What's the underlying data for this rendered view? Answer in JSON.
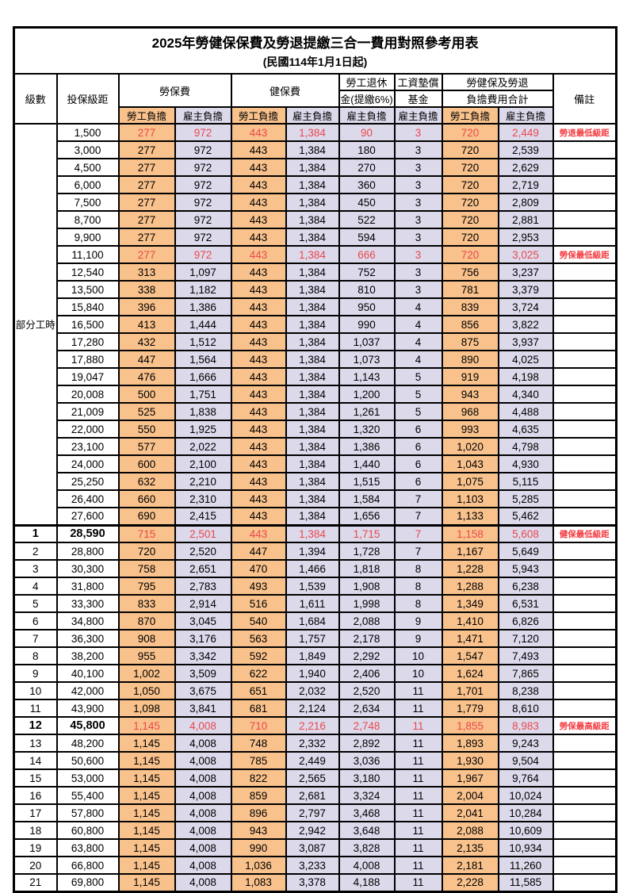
{
  "title": "2025年勞健保保費及勞退提繳三合一費用對照參考用表",
  "subtitle": "(民國114年1月1日起)",
  "columns": {
    "level": "級數",
    "bracket": "投保級距",
    "labor_group": "勞保費",
    "health_group": "健保費",
    "pension_line1": "勞工退休",
    "pension_line2": "金(提繳6%)",
    "fund_line1": "工資墊償",
    "fund_line2": "基金",
    "total_line1": "勞健保及勞退",
    "total_line2": "負擔費用合計",
    "remark": "備註",
    "employee": "勞工負擔",
    "employer": "雇主負擔"
  },
  "part_time_label": "部分工時",
  "colors": {
    "employee_bg": "#F9C28C",
    "employer_bg": "#DCD9EB",
    "highlight_number_red": "#E9484D",
    "remark_red": "#F43B40",
    "border_black": "#000000"
  },
  "row_fields": [
    "level",
    "bracket",
    "labor_emp",
    "labor_er",
    "health_emp",
    "health_er",
    "pension_er",
    "fund_er",
    "total_emp",
    "total_er",
    "remark",
    "highlight",
    "bold"
  ],
  "rows": [
    [
      "",
      "1,500",
      "277",
      "972",
      "443",
      "1,384",
      "90",
      "3",
      "720",
      "2,449",
      "勞退最低級距",
      true,
      false
    ],
    [
      "",
      "3,000",
      "277",
      "972",
      "443",
      "1,384",
      "180",
      "3",
      "720",
      "2,539",
      "",
      false,
      false
    ],
    [
      "",
      "4,500",
      "277",
      "972",
      "443",
      "1,384",
      "270",
      "3",
      "720",
      "2,629",
      "",
      false,
      false
    ],
    [
      "",
      "6,000",
      "277",
      "972",
      "443",
      "1,384",
      "360",
      "3",
      "720",
      "2,719",
      "",
      false,
      false
    ],
    [
      "",
      "7,500",
      "277",
      "972",
      "443",
      "1,384",
      "450",
      "3",
      "720",
      "2,809",
      "",
      false,
      false
    ],
    [
      "",
      "8,700",
      "277",
      "972",
      "443",
      "1,384",
      "522",
      "3",
      "720",
      "2,881",
      "",
      false,
      false
    ],
    [
      "",
      "9,900",
      "277",
      "972",
      "443",
      "1,384",
      "594",
      "3",
      "720",
      "2,953",
      "",
      false,
      false
    ],
    [
      "",
      "11,100",
      "277",
      "972",
      "443",
      "1,384",
      "666",
      "3",
      "720",
      "3,025",
      "勞保最低級距",
      true,
      false
    ],
    [
      "",
      "12,540",
      "313",
      "1,097",
      "443",
      "1,384",
      "752",
      "3",
      "756",
      "3,237",
      "",
      false,
      false
    ],
    [
      "",
      "13,500",
      "338",
      "1,182",
      "443",
      "1,384",
      "810",
      "3",
      "781",
      "3,379",
      "",
      false,
      false
    ],
    [
      "",
      "15,840",
      "396",
      "1,386",
      "443",
      "1,384",
      "950",
      "4",
      "839",
      "3,724",
      "",
      false,
      false
    ],
    [
      "",
      "16,500",
      "413",
      "1,444",
      "443",
      "1,384",
      "990",
      "4",
      "856",
      "3,822",
      "",
      false,
      false
    ],
    [
      "",
      "17,280",
      "432",
      "1,512",
      "443",
      "1,384",
      "1,037",
      "4",
      "875",
      "3,937",
      "",
      false,
      false
    ],
    [
      "",
      "17,880",
      "447",
      "1,564",
      "443",
      "1,384",
      "1,073",
      "4",
      "890",
      "4,025",
      "",
      false,
      false
    ],
    [
      "",
      "19,047",
      "476",
      "1,666",
      "443",
      "1,384",
      "1,143",
      "5",
      "919",
      "4,198",
      "",
      false,
      false
    ],
    [
      "",
      "20,008",
      "500",
      "1,751",
      "443",
      "1,384",
      "1,200",
      "5",
      "943",
      "4,340",
      "",
      false,
      false
    ],
    [
      "",
      "21,009",
      "525",
      "1,838",
      "443",
      "1,384",
      "1,261",
      "5",
      "968",
      "4,488",
      "",
      false,
      false
    ],
    [
      "",
      "22,000",
      "550",
      "1,925",
      "443",
      "1,384",
      "1,320",
      "6",
      "993",
      "4,635",
      "",
      false,
      false
    ],
    [
      "",
      "23,100",
      "577",
      "2,022",
      "443",
      "1,384",
      "1,386",
      "6",
      "1,020",
      "4,798",
      "",
      false,
      false
    ],
    [
      "",
      "24,000",
      "600",
      "2,100",
      "443",
      "1,384",
      "1,440",
      "6",
      "1,043",
      "4,930",
      "",
      false,
      false
    ],
    [
      "",
      "25,250",
      "632",
      "2,210",
      "443",
      "1,384",
      "1,515",
      "6",
      "1,075",
      "5,115",
      "",
      false,
      false
    ],
    [
      "",
      "26,400",
      "660",
      "2,310",
      "443",
      "1,384",
      "1,584",
      "7",
      "1,103",
      "5,285",
      "",
      false,
      false
    ],
    [
      "",
      "27,600",
      "690",
      "2,415",
      "443",
      "1,384",
      "1,656",
      "7",
      "1,133",
      "5,462",
      "",
      false,
      false
    ],
    [
      "1",
      "28,590",
      "715",
      "2,501",
      "443",
      "1,384",
      "1,715",
      "7",
      "1,158",
      "5,608",
      "健保最低級距",
      true,
      true
    ],
    [
      "2",
      "28,800",
      "720",
      "2,520",
      "447",
      "1,394",
      "1,728",
      "7",
      "1,167",
      "5,649",
      "",
      false,
      false
    ],
    [
      "3",
      "30,300",
      "758",
      "2,651",
      "470",
      "1,466",
      "1,818",
      "8",
      "1,228",
      "5,943",
      "",
      false,
      false
    ],
    [
      "4",
      "31,800",
      "795",
      "2,783",
      "493",
      "1,539",
      "1,908",
      "8",
      "1,288",
      "6,238",
      "",
      false,
      false
    ],
    [
      "5",
      "33,300",
      "833",
      "2,914",
      "516",
      "1,611",
      "1,998",
      "8",
      "1,349",
      "6,531",
      "",
      false,
      false
    ],
    [
      "6",
      "34,800",
      "870",
      "3,045",
      "540",
      "1,684",
      "2,088",
      "9",
      "1,410",
      "6,826",
      "",
      false,
      false
    ],
    [
      "7",
      "36,300",
      "908",
      "3,176",
      "563",
      "1,757",
      "2,178",
      "9",
      "1,471",
      "7,120",
      "",
      false,
      false
    ],
    [
      "8",
      "38,200",
      "955",
      "3,342",
      "592",
      "1,849",
      "2,292",
      "10",
      "1,547",
      "7,493",
      "",
      false,
      false
    ],
    [
      "9",
      "40,100",
      "1,002",
      "3,509",
      "622",
      "1,940",
      "2,406",
      "10",
      "1,624",
      "7,865",
      "",
      false,
      false
    ],
    [
      "10",
      "42,000",
      "1,050",
      "3,675",
      "651",
      "2,032",
      "2,520",
      "11",
      "1,701",
      "8,238",
      "",
      false,
      false
    ],
    [
      "11",
      "43,900",
      "1,098",
      "3,841",
      "681",
      "2,124",
      "2,634",
      "11",
      "1,779",
      "8,610",
      "",
      false,
      false
    ],
    [
      "12",
      "45,800",
      "1,145",
      "4,008",
      "710",
      "2,216",
      "2,748",
      "11",
      "1,855",
      "8,983",
      "勞保最高級距",
      true,
      true
    ],
    [
      "13",
      "48,200",
      "1,145",
      "4,008",
      "748",
      "2,332",
      "2,892",
      "11",
      "1,893",
      "9,243",
      "",
      false,
      false
    ],
    [
      "14",
      "50,600",
      "1,145",
      "4,008",
      "785",
      "2,449",
      "3,036",
      "11",
      "1,930",
      "9,504",
      "",
      false,
      false
    ],
    [
      "15",
      "53,000",
      "1,145",
      "4,008",
      "822",
      "2,565",
      "3,180",
      "11",
      "1,967",
      "9,764",
      "",
      false,
      false
    ],
    [
      "16",
      "55,400",
      "1,145",
      "4,008",
      "859",
      "2,681",
      "3,324",
      "11",
      "2,004",
      "10,024",
      "",
      false,
      false
    ],
    [
      "17",
      "57,800",
      "1,145",
      "4,008",
      "896",
      "2,797",
      "3,468",
      "11",
      "2,041",
      "10,284",
      "",
      false,
      false
    ],
    [
      "18",
      "60,800",
      "1,145",
      "4,008",
      "943",
      "2,942",
      "3,648",
      "11",
      "2,088",
      "10,609",
      "",
      false,
      false
    ],
    [
      "19",
      "63,800",
      "1,145",
      "4,008",
      "990",
      "3,087",
      "3,828",
      "11",
      "2,135",
      "10,934",
      "",
      false,
      false
    ],
    [
      "20",
      "66,800",
      "1,145",
      "4,008",
      "1,036",
      "3,233",
      "4,008",
      "11",
      "2,181",
      "11,260",
      "",
      false,
      false
    ],
    [
      "21",
      "69,800",
      "1,145",
      "4,008",
      "1,083",
      "3,378",
      "4,188",
      "11",
      "2,228",
      "11,585",
      "",
      false,
      false
    ]
  ]
}
